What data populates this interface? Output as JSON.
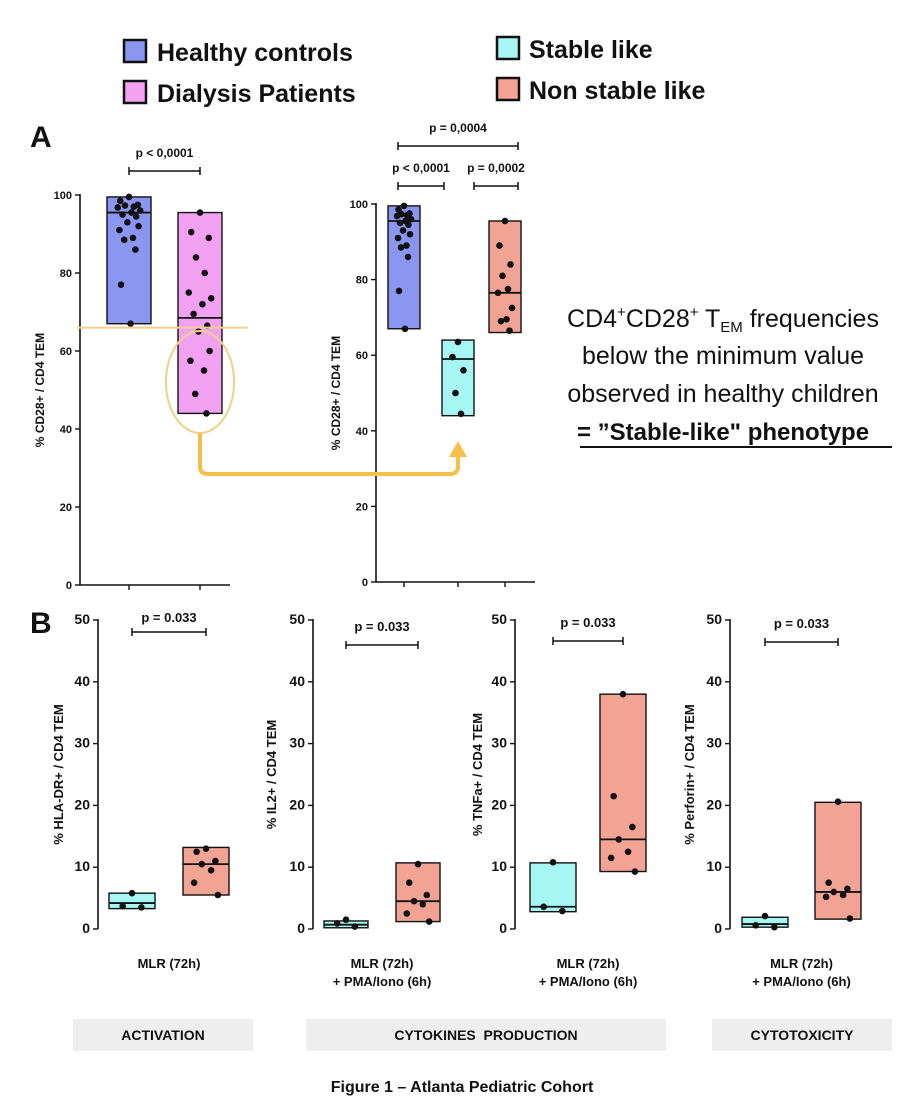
{
  "legend": {
    "healthy": {
      "label": "Healthy controls",
      "color": "#8b96f0"
    },
    "dialysis": {
      "label": "Dialysis Patients",
      "color": "#f2a0f2"
    },
    "stable": {
      "label": "Stable like",
      "color": "#a6f7f4"
    },
    "nonstable": {
      "label": "Non stable like",
      "color": "#f2a393"
    }
  },
  "panel_a_letter": "A",
  "panel_b_letter": "B",
  "annotation": {
    "line1_pre": "CD4",
    "line1_sup1": "+",
    "line1_mid": "CD28",
    "line1_sup2": "+",
    "line1_t": " T",
    "line1_sub": "EM",
    "line1_post": " frequencies",
    "line2": "below the minimum value",
    "line3": "observed in healthy children",
    "line4": "= ”Stable-like\" phenotype"
  },
  "sections": {
    "activation": "ACTIVATION",
    "cytokines": "CYTOKINES  PRODUCTION",
    "cytotoxicity": "CYTOTOXICITY"
  },
  "caption": "Figure 1 – Atlanta Pediatric Cohort",
  "chart_data": [
    {
      "type": "box",
      "panel": "A-left",
      "ylabel": "% CD28+ / CD4 TEM",
      "ylim": [
        0,
        100
      ],
      "yticks": [
        "0",
        "20",
        "40",
        "60",
        "80",
        "100"
      ],
      "threshold": 66,
      "series": [
        {
          "group": "healthy",
          "min": 67,
          "median": 95.5,
          "max": 99.5,
          "points": [
            99.5,
            98.5,
            97.5,
            97.3,
            97,
            96.8,
            96,
            95.5,
            95,
            94.5,
            93,
            92,
            91,
            89,
            88.5,
            86,
            77,
            67
          ]
        },
        {
          "group": "dialysis",
          "min": 44,
          "median": 68.5,
          "max": 95.5,
          "points": [
            95.5,
            90.5,
            89,
            84,
            80,
            75,
            73.5,
            72,
            69.5,
            66.5,
            65,
            60,
            57.5,
            55,
            49,
            44
          ]
        }
      ],
      "comparisons": [
        {
          "from": 0,
          "to": 1,
          "label": "p < 0,0001"
        }
      ]
    },
    {
      "type": "box",
      "panel": "A-right",
      "ylabel": "% CD28+ / CD4 TEM",
      "ylim": [
        0,
        100
      ],
      "yticks": [
        "0",
        "20",
        "40",
        "60",
        "80",
        "100"
      ],
      "series": [
        {
          "group": "healthy",
          "min": 67,
          "median": 95.5,
          "max": 99.5,
          "points": [
            99.5,
            98.5,
            97.5,
            97.3,
            97,
            96.8,
            96,
            95.5,
            95,
            94.5,
            93,
            92,
            91,
            89,
            88.5,
            86,
            77,
            67
          ]
        },
        {
          "group": "stable",
          "min": 44,
          "median": 59,
          "max": 64,
          "points": [
            63.5,
            59.5,
            56,
            50,
            44.5
          ]
        },
        {
          "group": "nonstable",
          "min": 66,
          "median": 76.5,
          "max": 95.5,
          "points": [
            95.5,
            89,
            84,
            81,
            77.5,
            76.5,
            72.5,
            69.5,
            69,
            66.5
          ]
        }
      ],
      "comparisons": [
        {
          "from": 0,
          "to": 1,
          "label": "p < 0,0001",
          "level": 0
        },
        {
          "from": 1,
          "to": 2,
          "label": "p = 0,0002",
          "level": 0
        },
        {
          "from": 0,
          "to": 2,
          "label": "p = 0,0004",
          "level": 1
        }
      ]
    },
    {
      "type": "box",
      "panel": "B-activation",
      "ylabel": "% HLA-DR+ / CD4 TEM",
      "xlabel_lines": [
        "MLR (72h)"
      ],
      "ylim": [
        0,
        50
      ],
      "yticks": [
        "0",
        "10",
        "20",
        "30",
        "40",
        "50"
      ],
      "series": [
        {
          "group": "stable",
          "min": 3.3,
          "median": 4.2,
          "max": 5.8,
          "points": [
            5.8,
            3.7,
            3.5
          ]
        },
        {
          "group": "nonstable",
          "min": 5.5,
          "median": 10.5,
          "max": 13.2,
          "points": [
            13,
            12.5,
            11,
            10.5,
            9.5,
            7.5,
            5.5
          ]
        }
      ],
      "comparisons": [
        {
          "from": 0,
          "to": 1,
          "label": "p = 0.033"
        }
      ]
    },
    {
      "type": "box",
      "panel": "B-il2",
      "ylabel": "% IL2+ / CD4 TEM",
      "xlabel_lines": [
        "MLR (72h)",
        "+ PMA/Iono (6h)"
      ],
      "ylim": [
        0,
        50
      ],
      "yticks": [
        "0",
        "10",
        "20",
        "30",
        "40",
        "50"
      ],
      "series": [
        {
          "group": "stable",
          "min": 0.2,
          "median": 0.7,
          "max": 1.3,
          "points": [
            1.5,
            0.9,
            0.4
          ]
        },
        {
          "group": "nonstable",
          "min": 1.2,
          "median": 4.5,
          "max": 10.7,
          "points": [
            10.5,
            7.5,
            5.5,
            4.5,
            4,
            2.5,
            1.2
          ]
        }
      ],
      "comparisons": [
        {
          "from": 0,
          "to": 1,
          "label": "p = 0.033"
        }
      ]
    },
    {
      "type": "box",
      "panel": "B-tnfa",
      "ylabel": "% TNFa+ / CD4 TEM",
      "xlabel_lines": [
        "MLR (72h)",
        "+ PMA/Iono (6h)"
      ],
      "ylim": [
        0,
        50
      ],
      "yticks": [
        "0",
        "10",
        "20",
        "30",
        "40",
        "50"
      ],
      "series": [
        {
          "group": "stable",
          "min": 2.8,
          "median": 3.6,
          "max": 10.7,
          "points": [
            10.8,
            3.6,
            2.9
          ]
        },
        {
          "group": "nonstable",
          "min": 9.3,
          "median": 14.5,
          "max": 38,
          "points": [
            38,
            21.5,
            16.5,
            14.5,
            12.5,
            11.5,
            9.3
          ]
        }
      ],
      "comparisons": [
        {
          "from": 0,
          "to": 1,
          "label": "p = 0.033"
        }
      ]
    },
    {
      "type": "box",
      "panel": "B-perforin",
      "ylabel": "% Perforin+ / CD4 TEM",
      "xlabel_lines": [
        "MLR (72h)",
        "+ PMA/Iono (6h)"
      ],
      "ylim": [
        0,
        50
      ],
      "yticks": [
        "0",
        "10",
        "20",
        "30",
        "40",
        "50"
      ],
      "series": [
        {
          "group": "stable",
          "min": 0.3,
          "median": 0.8,
          "max": 1.9,
          "points": [
            2.1,
            0.6,
            0.3
          ]
        },
        {
          "group": "nonstable",
          "min": 1.6,
          "median": 6,
          "max": 20.5,
          "points": [
            20.6,
            7.5,
            6.5,
            6,
            5.5,
            5.2,
            1.7
          ]
        }
      ],
      "comparisons": [
        {
          "from": 0,
          "to": 1,
          "label": "p = 0.033"
        }
      ]
    }
  ]
}
